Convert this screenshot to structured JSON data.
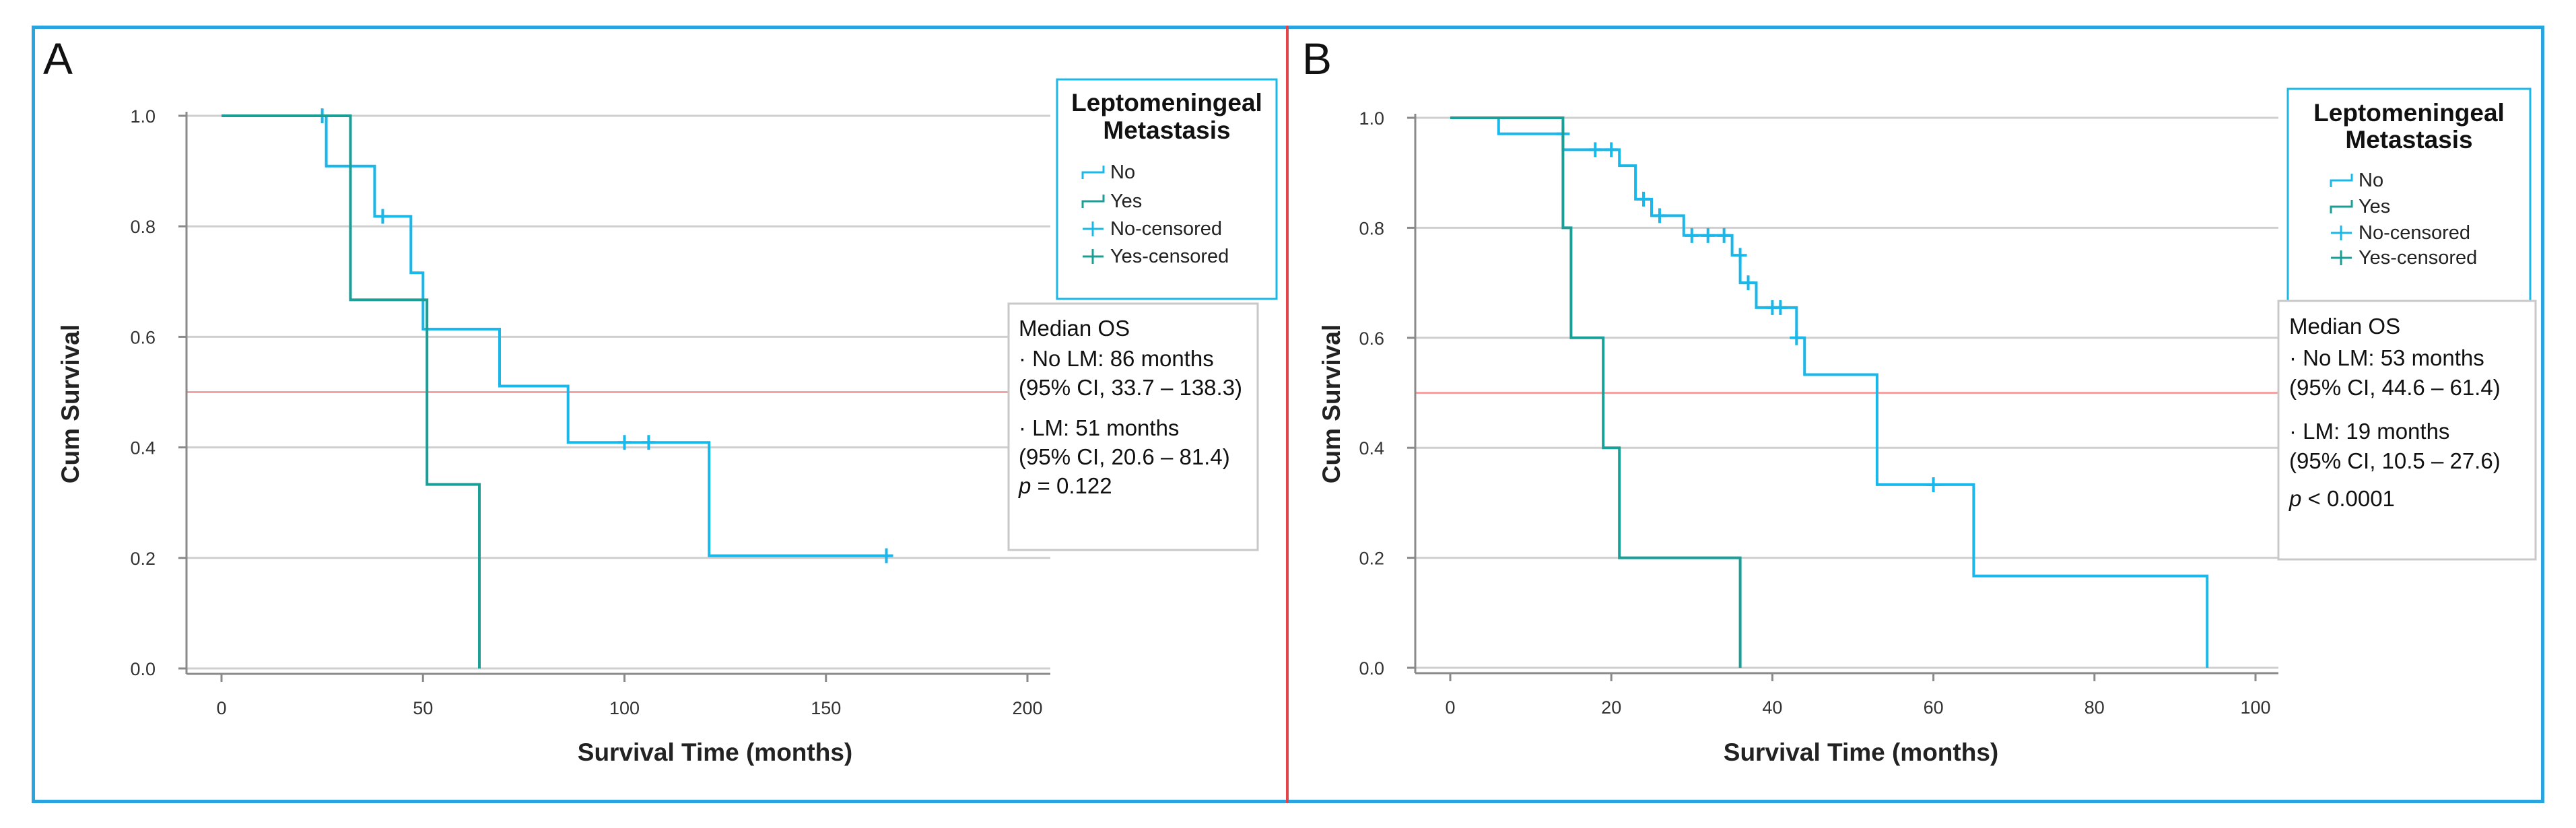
{
  "colors": {
    "frame": "#2aa3df",
    "divider": "#e4434a",
    "no_series": "#1ab8ea",
    "yes_series": "#1a9e96",
    "gridline": "#cfcfcf",
    "median_line": "#f2a3a3",
    "legend_border": "#1ab8ea",
    "stats_border": "#c8c8c8"
  },
  "chart_data": [
    {
      "type": "line",
      "panel": "A",
      "title": "",
      "xlabel": "Survival Time (months)",
      "ylabel": "Cum Survival",
      "xlim": [
        0,
        200
      ],
      "ylim": [
        0,
        1
      ],
      "x_ticks": [
        0,
        50,
        100,
        150,
        200
      ],
      "x_tick_labels": [
        "0",
        "50",
        "100",
        "150",
        "200"
      ],
      "y_ticks": [
        0,
        0.2,
        0.4,
        0.6,
        0.8,
        1.0
      ],
      "y_tick_labels": [
        "0.0",
        "0.2",
        "0.4",
        "0.6",
        "0.8",
        "1.0"
      ],
      "grid": true,
      "reference_line": {
        "y": 0.5
      },
      "legend": {
        "title_lines": [
          "Leptomeningeal",
          "Metastasis"
        ],
        "items": [
          "No",
          "Yes",
          "No-censored",
          "Yes-censored"
        ],
        "location": "top-right"
      },
      "series": [
        {
          "name": "No",
          "step_x": [
            0,
            26,
            26,
            31,
            31,
            38,
            38,
            47,
            47,
            50,
            50,
            69,
            69,
            86,
            86,
            121,
            121,
            165
          ],
          "step_y": [
            1.0,
            1.0,
            0.909,
            0.909,
            0.909,
            0.909,
            0.818,
            0.818,
            0.716,
            0.716,
            0.614,
            0.614,
            0.511,
            0.511,
            0.409,
            0.409,
            0.204,
            0.204
          ],
          "censored_x": [
            25,
            40,
            100,
            106,
            165
          ],
          "censored_y": [
            1.0,
            0.818,
            0.409,
            0.409,
            0.204
          ]
        },
        {
          "name": "Yes",
          "step_x": [
            0,
            32,
            32,
            51,
            51,
            64,
            64
          ],
          "step_y": [
            1.0,
            1.0,
            0.667,
            0.667,
            0.333,
            0.333,
            0.0
          ],
          "censored_x": [],
          "censored_y": []
        }
      ],
      "stats": {
        "header": "Median OS",
        "no_lm": "· No LM: 86 months",
        "no_lm_ci": "(95% CI, 33.7 – 138.3)",
        "lm": "· LM: 51 months",
        "lm_ci": "(95% CI, 20.6 – 81.4)",
        "p_label": "p",
        "p_value": " = 0.122"
      }
    },
    {
      "type": "line",
      "panel": "B",
      "title": "",
      "xlabel": "Survival Time (months)",
      "ylabel": "Cum Survival",
      "xlim": [
        0,
        100
      ],
      "ylim": [
        0,
        1
      ],
      "x_ticks": [
        0,
        20,
        40,
        60,
        80,
        100
      ],
      "x_tick_labels": [
        "0",
        "20",
        "40",
        "60",
        "80",
        "100"
      ],
      "y_ticks": [
        0,
        0.2,
        0.4,
        0.6,
        0.8,
        1.0
      ],
      "y_tick_labels": [
        "0.0",
        "0.2",
        "0.4",
        "0.6",
        "0.8",
        "1.0"
      ],
      "grid": true,
      "reference_line": {
        "y": 0.5
      },
      "legend": {
        "title_lines": [
          "Leptomeningeal",
          "Metastasis"
        ],
        "items": [
          "No",
          "Yes",
          "No-censored",
          "Yes-censored"
        ],
        "location": "top-right"
      },
      "series": [
        {
          "name": "No",
          "step_x": [
            0,
            6,
            6,
            14,
            14,
            15,
            15,
            21,
            21,
            23,
            23,
            25,
            25,
            29,
            29,
            35,
            35,
            36,
            36,
            37,
            37,
            38,
            38,
            43,
            43,
            44,
            44,
            53,
            53,
            65,
            65,
            94,
            94
          ],
          "step_y": [
            1.0,
            1.0,
            0.971,
            0.971,
            0.942,
            0.942,
            0.942,
            0.942,
            0.913,
            0.913,
            0.852,
            0.852,
            0.822,
            0.822,
            0.786,
            0.786,
            0.75,
            0.75,
            0.7,
            0.7,
            0.7,
            0.7,
            0.655,
            0.655,
            0.6,
            0.6,
            0.533,
            0.533,
            0.333,
            0.333,
            0.167,
            0.167,
            0.0
          ],
          "censored_x": [
            14,
            18,
            20,
            24,
            26,
            30,
            32,
            34,
            36,
            37,
            40,
            41,
            43,
            60
          ],
          "censored_y": [
            0.971,
            0.942,
            0.942,
            0.852,
            0.822,
            0.786,
            0.786,
            0.786,
            0.75,
            0.7,
            0.655,
            0.655,
            0.6,
            0.333
          ]
        },
        {
          "name": "Yes",
          "step_x": [
            0,
            14,
            14,
            15,
            15,
            19,
            19,
            21,
            21,
            36,
            36
          ],
          "step_y": [
            1.0,
            1.0,
            0.8,
            0.8,
            0.6,
            0.6,
            0.4,
            0.4,
            0.2,
            0.2,
            0.0
          ],
          "censored_x": [],
          "censored_y": []
        }
      ],
      "stats": {
        "header": "Median OS",
        "no_lm": "· No LM: 53 months",
        "no_lm_ci": "(95% CI, 44.6 – 61.4)",
        "lm": "· LM: 19 months",
        "lm_ci": "(95% CI, 10.5 – 27.6)",
        "p_label": "p",
        "p_value": " < 0.0001"
      }
    }
  ]
}
